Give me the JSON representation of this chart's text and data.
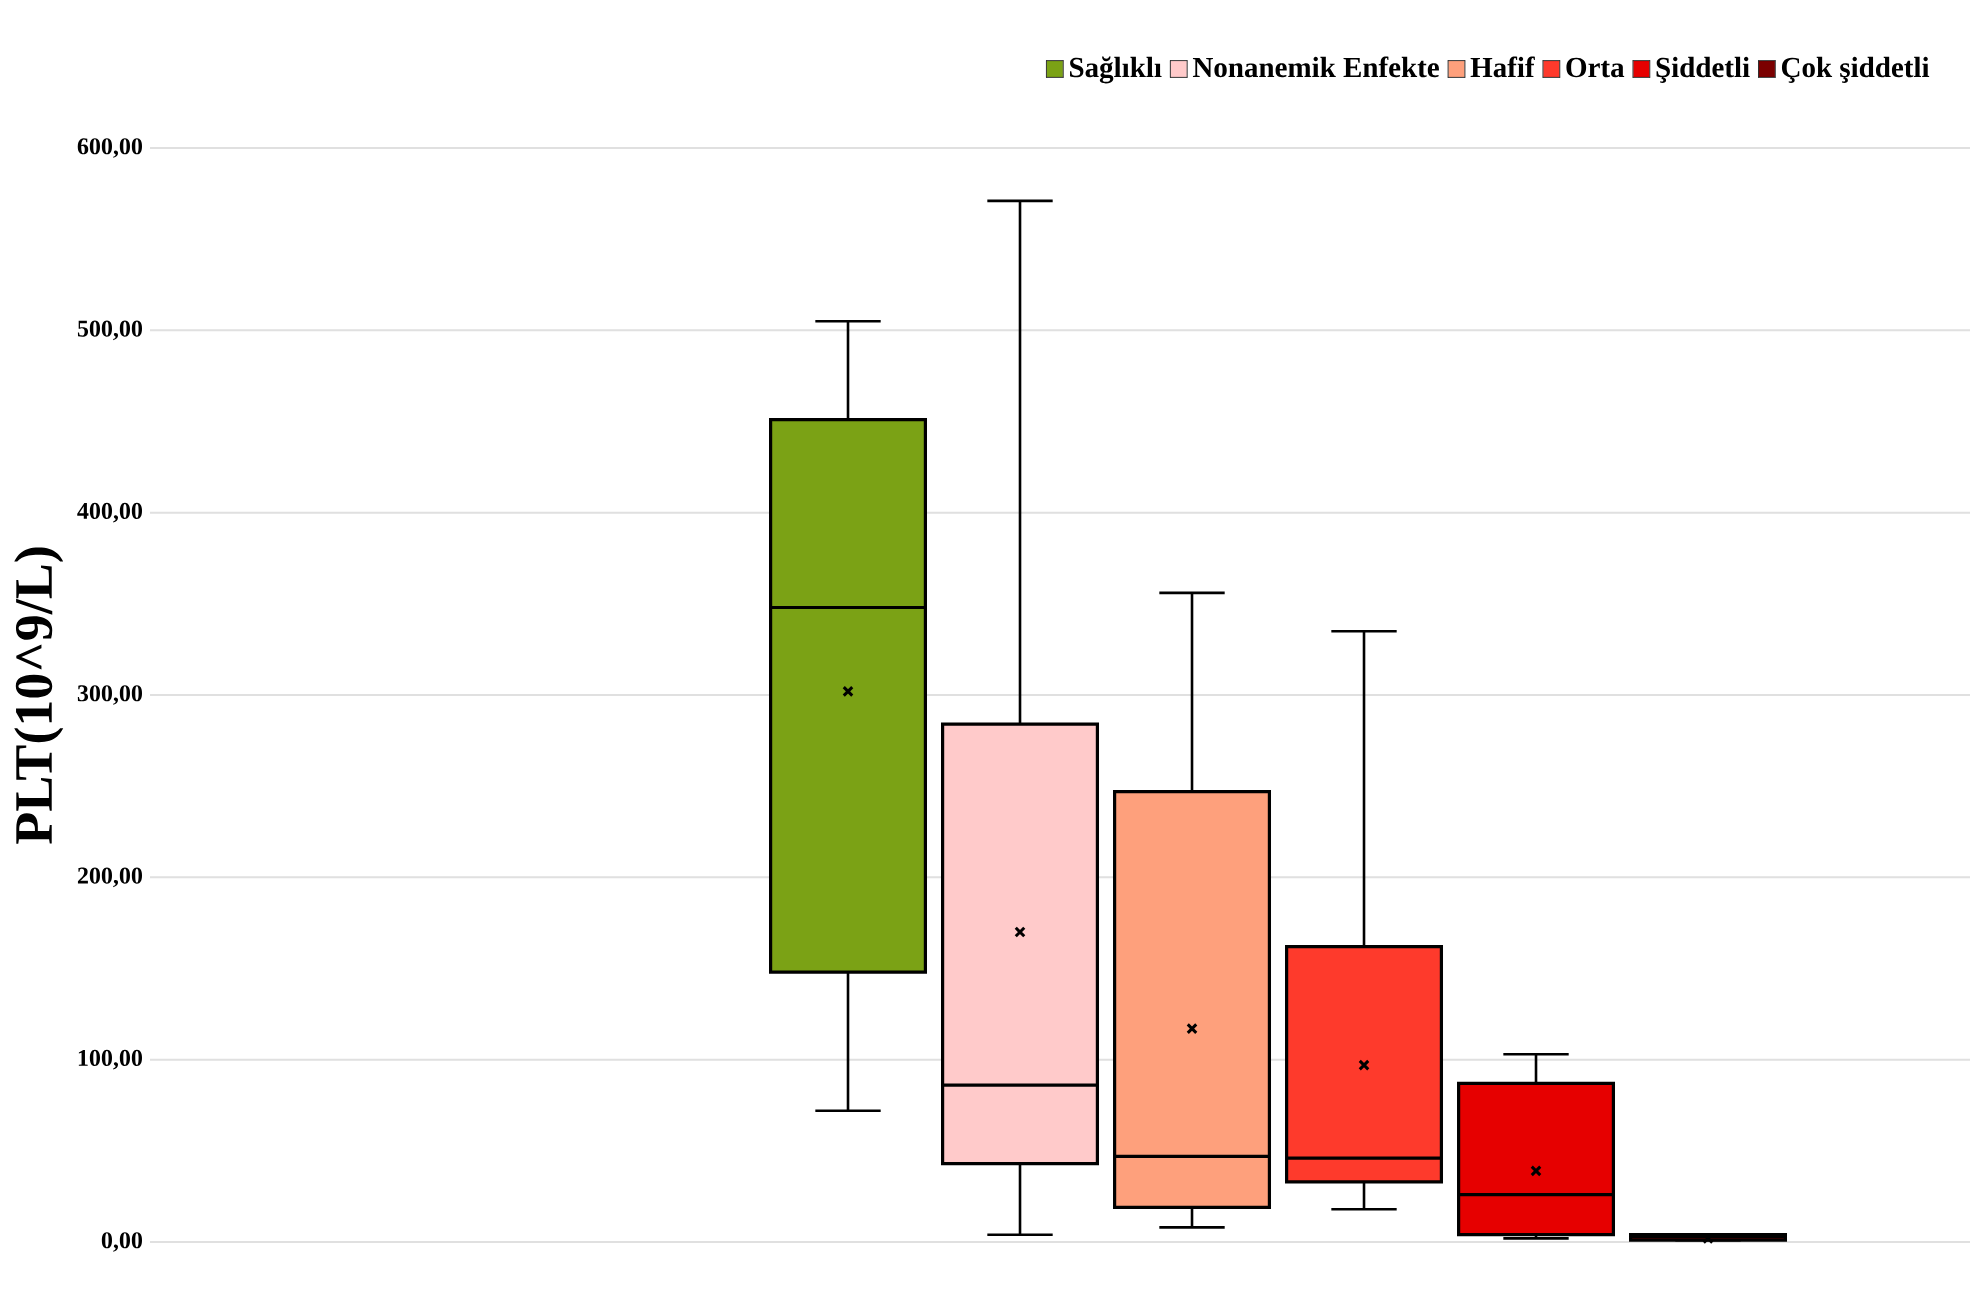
{
  "chart_data": {
    "type": "box",
    "ylabel": "PLT(10^9/L)",
    "categories": [
      null
    ],
    "ylim": [
      0,
      600
    ],
    "yticks": [
      {
        "value": 0,
        "label": "0,00"
      },
      {
        "value": 100,
        "label": "100,00"
      },
      {
        "value": 200,
        "label": "200,00"
      },
      {
        "value": 300,
        "label": "300,00"
      },
      {
        "value": 400,
        "label": "400,00"
      },
      {
        "value": 500,
        "label": "500,00"
      },
      {
        "value": 600,
        "label": "600,00"
      }
    ],
    "grid": "y",
    "legend": "top",
    "marker": "cross",
    "series": [
      {
        "name": "Sağlıklı",
        "color": "#7ba215",
        "boxes": [
          {
            "low": 72,
            "q1": 148,
            "median": 348,
            "q3": 451,
            "high": 505,
            "mean": 302
          }
        ]
      },
      {
        "name": "Nonanemik Enfekte",
        "color": "#ffcaca",
        "boxes": [
          {
            "low": 4,
            "q1": 43,
            "median": 86,
            "q3": 284,
            "high": 571,
            "mean": 170
          }
        ]
      },
      {
        "name": "Hafif",
        "color": "#fea07c",
        "boxes": [
          {
            "low": 8,
            "q1": 19,
            "median": 47,
            "q3": 247,
            "high": 356,
            "mean": 117
          }
        ]
      },
      {
        "name": "Orta",
        "color": "#fe3a2c",
        "boxes": [
          {
            "low": 18,
            "q1": 33,
            "median": 46,
            "q3": 162,
            "high": 335,
            "mean": 97
          }
        ]
      },
      {
        "name": "Şiddetli",
        "color": "#e60000",
        "boxes": [
          {
            "low": 2,
            "q1": 4,
            "median": 26,
            "q3": 87,
            "high": 103,
            "mean": 39
          }
        ]
      },
      {
        "name": "Çok şiddetli",
        "color": "#7b0000",
        "boxes": [
          {
            "low": 1,
            "q1": 1,
            "median": 3,
            "q3": 4,
            "high": 4,
            "mean": 2
          }
        ]
      }
    ]
  }
}
